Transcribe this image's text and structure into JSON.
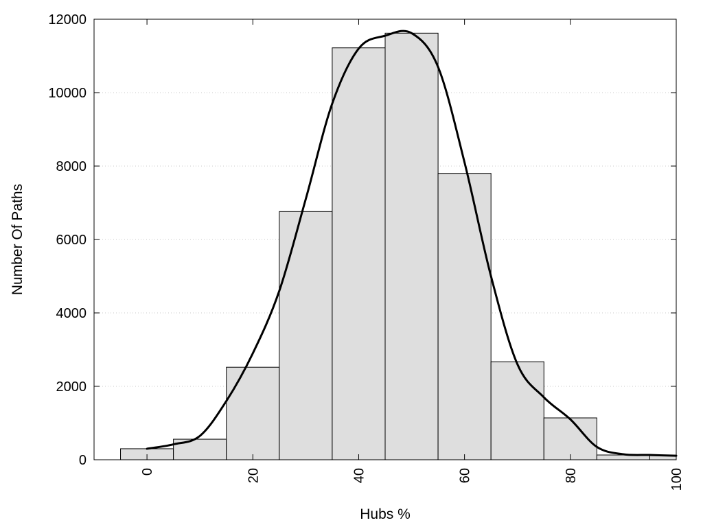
{
  "chart_data": {
    "type": "bar",
    "title": "",
    "xlabel": "Hubs %",
    "ylabel": "Number Of Paths",
    "xlim": [
      -10,
      100
    ],
    "ylim": [
      0,
      12000
    ],
    "x_ticks": [
      "0",
      "20",
      "40",
      "60",
      "80",
      "100"
    ],
    "y_ticks": [
      "0",
      "2000",
      "4000",
      "6000",
      "8000",
      "10000",
      "12000"
    ],
    "grid": "horizontal-dotted",
    "legend": "none",
    "bar_color": "#dedede",
    "bins": [
      {
        "start": -5,
        "end": 5,
        "value": 300
      },
      {
        "start": 5,
        "end": 15,
        "value": 560
      },
      {
        "start": 15,
        "end": 25,
        "value": 2520
      },
      {
        "start": 25,
        "end": 35,
        "value": 6760
      },
      {
        "start": 35,
        "end": 45,
        "value": 11220
      },
      {
        "start": 45,
        "end": 55,
        "value": 11620
      },
      {
        "start": 55,
        "end": 65,
        "value": 7800
      },
      {
        "start": 65,
        "end": 75,
        "value": 2670
      },
      {
        "start": 75,
        "end": 85,
        "value": 1140
      },
      {
        "start": 85,
        "end": 95,
        "value": 130
      },
      {
        "start": 95,
        "end": 105,
        "value": 110
      }
    ],
    "series": [
      {
        "type": "line",
        "x": [
          0,
          5,
          10,
          15,
          20,
          25,
          30,
          35,
          40,
          45,
          50,
          55,
          60,
          65,
          70,
          75,
          80,
          85,
          90,
          95,
          100
        ],
        "values": [
          300,
          420,
          650,
          1600,
          2900,
          4600,
          7100,
          9700,
          11200,
          11550,
          11620,
          10700,
          8100,
          5000,
          2600,
          1700,
          1100,
          350,
          150,
          130,
          110
        ]
      }
    ]
  }
}
